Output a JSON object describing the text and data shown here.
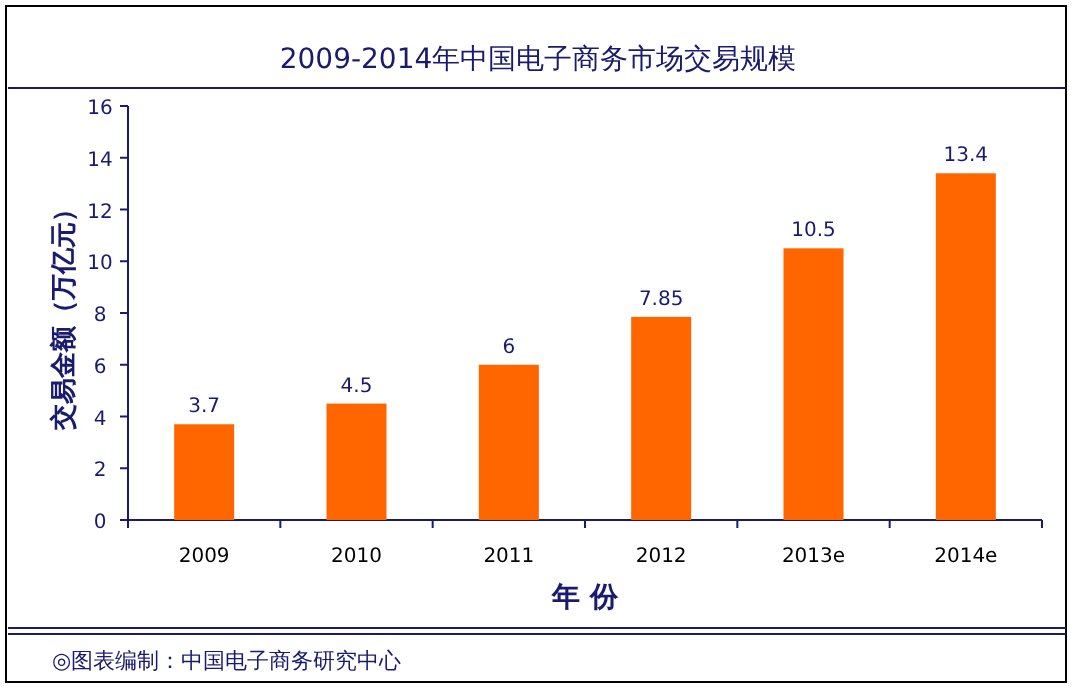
{
  "chart_data": {
    "type": "bar",
    "title": "2009-2014年中国电子商务市场交易规模",
    "xlabel": "年 份",
    "ylabel": "交易金额（万亿元）",
    "categories": [
      "2009",
      "2010",
      "2011",
      "2012",
      "2013e",
      "2014e"
    ],
    "values": [
      3.7,
      4.5,
      6,
      7.85,
      10.5,
      13.4
    ],
    "color": "#ff6600",
    "ylim": [
      0,
      16
    ],
    "yticks": [
      0,
      2,
      4,
      6,
      8,
      10,
      12,
      14,
      16
    ],
    "data_labels": true,
    "annotations": [
      "◎图表编制：中国电子商务研究中心"
    ]
  }
}
